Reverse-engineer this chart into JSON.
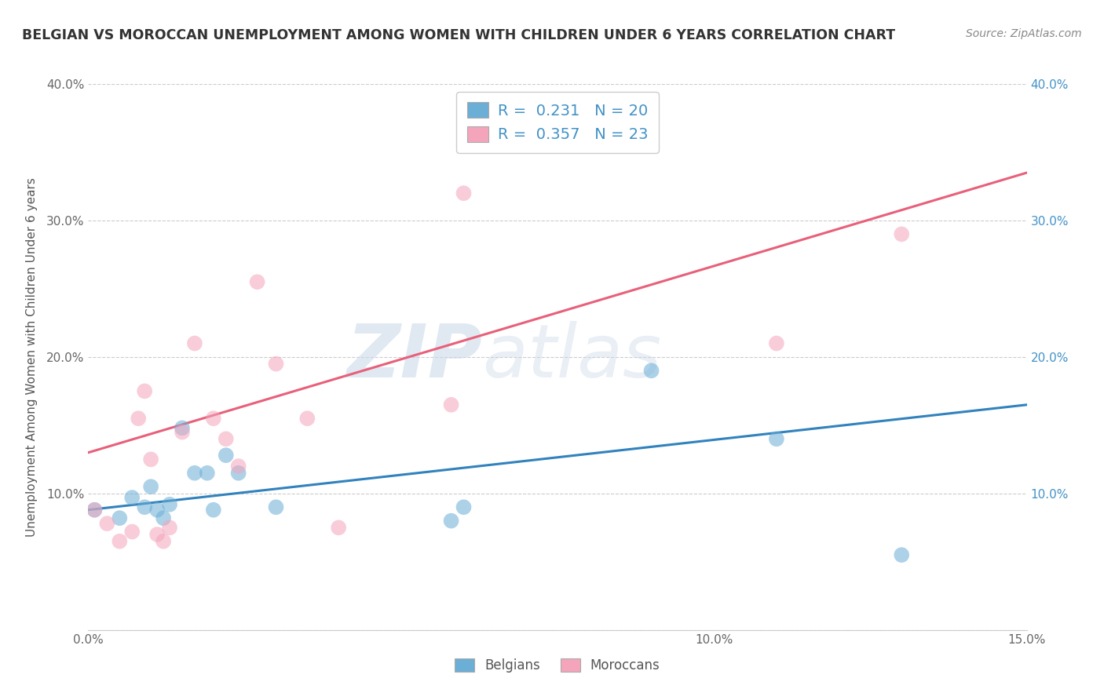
{
  "title": "BELGIAN VS MOROCCAN UNEMPLOYMENT AMONG WOMEN WITH CHILDREN UNDER 6 YEARS CORRELATION CHART",
  "source": "Source: ZipAtlas.com",
  "ylabel": "Unemployment Among Women with Children Under 6 years",
  "xlim": [
    0.0,
    0.15
  ],
  "ylim": [
    0.0,
    0.4
  ],
  "xticks": [
    0.0,
    0.05,
    0.1,
    0.15
  ],
  "yticks": [
    0.0,
    0.1,
    0.2,
    0.3,
    0.4
  ],
  "xtick_labels": [
    "0.0%",
    "",
    "10.0%",
    "15.0%"
  ],
  "ytick_labels": [
    "",
    "10.0%",
    "20.0%",
    "30.0%",
    "40.0%"
  ],
  "belgian_color": "#6baed6",
  "moroccan_color": "#f4a5bb",
  "trend_belgian_color": "#3182bd",
  "trend_moroccan_color": "#e8607a",
  "legend_R_color": "#4292c6",
  "belgian_R": "0.231",
  "belgian_N": "20",
  "moroccan_R": "0.357",
  "moroccan_N": "23",
  "belgian_x": [
    0.001,
    0.005,
    0.007,
    0.009,
    0.01,
    0.011,
    0.012,
    0.013,
    0.015,
    0.017,
    0.019,
    0.02,
    0.022,
    0.024,
    0.03,
    0.058,
    0.06,
    0.09,
    0.11,
    0.13
  ],
  "belgian_y": [
    0.088,
    0.082,
    0.097,
    0.09,
    0.105,
    0.088,
    0.082,
    0.092,
    0.148,
    0.115,
    0.115,
    0.088,
    0.128,
    0.115,
    0.09,
    0.08,
    0.09,
    0.19,
    0.14,
    0.055
  ],
  "moroccan_x": [
    0.001,
    0.003,
    0.005,
    0.007,
    0.008,
    0.009,
    0.01,
    0.011,
    0.012,
    0.013,
    0.015,
    0.017,
    0.02,
    0.022,
    0.024,
    0.027,
    0.03,
    0.035,
    0.04,
    0.058,
    0.06,
    0.11,
    0.13
  ],
  "moroccan_y": [
    0.088,
    0.078,
    0.065,
    0.072,
    0.155,
    0.175,
    0.125,
    0.07,
    0.065,
    0.075,
    0.145,
    0.21,
    0.155,
    0.14,
    0.12,
    0.255,
    0.195,
    0.155,
    0.075,
    0.165,
    0.32,
    0.21,
    0.29
  ],
  "watermark_zip": "ZIP",
  "watermark_atlas": "atlas",
  "background_color": "#ffffff",
  "grid_color": "#cccccc",
  "scatter_alpha": 0.55,
  "scatter_size": 200,
  "title_fontsize": 12.5,
  "source_fontsize": 10,
  "axis_label_fontsize": 11,
  "tick_fontsize": 11,
  "legend_fontsize": 14
}
